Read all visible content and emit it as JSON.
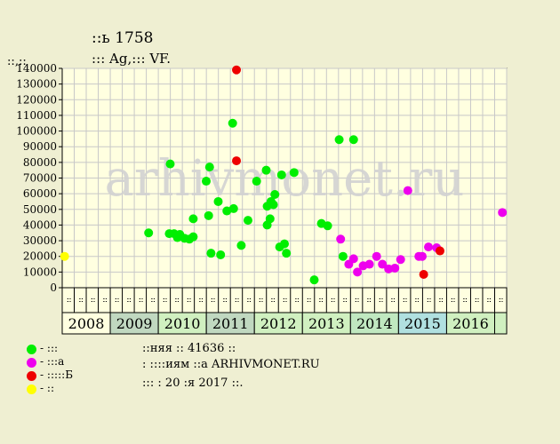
{
  "header": {
    "title": "։։ь 1758",
    "subtitle": "։։։ Ag,։։։ VF.",
    "unit_label": "։։,։։"
  },
  "colors": {
    "green": "#00ee00",
    "magenta": "#ee00ee",
    "red": "#ee0000",
    "yellow": "#ffff00",
    "plot_bg": "#ffffe0",
    "grid": "#c8c8c8",
    "watermark": "#d2d2d2"
  },
  "watermark": "arhivmonet.ru",
  "legend": [
    {
      "label": "- ։։։",
      "color": "#00ee00"
    },
    {
      "label": "- ։։։а",
      "color": "#ee00ee"
    },
    {
      "label": "- ։։։։։Б",
      "color": "#ee0000"
    },
    {
      "label": "- ։։",
      "color": "#ffff00"
    }
  ],
  "info": [
    "։։няя ։։ 41636 ։։",
    "։ ։։։։иям ։։а ARHIVMONET.RU",
    "։։։ ։ 20 ։я 2017 ։։."
  ],
  "chart_data": {
    "type": "scatter",
    "title": "",
    "ylabel": "։։,։։",
    "ylim": [
      0,
      140000
    ],
    "y_ticks": [
      0,
      10000,
      20000,
      30000,
      40000,
      50000,
      60000,
      70000,
      80000,
      90000,
      100000,
      110000,
      120000,
      130000,
      140000
    ],
    "grid": true,
    "years": [
      {
        "label": "2008",
        "color": "#ffffe0"
      },
      {
        "label": "2009",
        "color": "#c0d8c0"
      },
      {
        "label": "2010",
        "color": "#d0f0c0"
      },
      {
        "label": "2011",
        "color": "#c0d8c0"
      },
      {
        "label": "2012",
        "color": "#d0f0c0"
      },
      {
        "label": "2013",
        "color": "#d0f0c0"
      },
      {
        "label": "2014",
        "color": "#c0e8c0"
      },
      {
        "label": "2015",
        "color": "#b0e0e0"
      },
      {
        "label": "2016",
        "color": "#d0f0c0"
      },
      {
        "label": "",
        "color": "#d0f0c0"
      }
    ],
    "quarters": [
      "։։",
      "։։",
      "։։",
      "։։",
      "։։",
      "։։",
      "։։",
      "։։",
      "։։",
      "։։",
      "։։",
      "։։",
      "։։",
      "։։",
      "։։",
      "։։",
      "։։",
      "։։",
      "։։",
      "։։",
      "։։",
      "։։",
      "։։",
      "։։",
      "։։",
      "։։",
      "։։",
      "։։",
      "։։",
      "։։",
      "։։",
      "։։",
      "։։",
      "։։",
      "։։",
      "։։",
      "։։"
    ],
    "series": [
      {
        "group": "green",
        "points": [
          {
            "x": 2009.55,
            "y": 35000
          },
          {
            "x": 2010.0,
            "y": 79000
          },
          {
            "x": 2009.98,
            "y": 34500
          },
          {
            "x": 2010.08,
            "y": 34500
          },
          {
            "x": 2010.15,
            "y": 32000
          },
          {
            "x": 2010.2,
            "y": 34000
          },
          {
            "x": 2010.3,
            "y": 31500
          },
          {
            "x": 2010.4,
            "y": 31000
          },
          {
            "x": 2010.48,
            "y": 32500
          },
          {
            "x": 2010.48,
            "y": 44000
          },
          {
            "x": 2010.75,
            "y": 68000
          },
          {
            "x": 2010.8,
            "y": 46000
          },
          {
            "x": 2010.82,
            "y": 77000
          },
          {
            "x": 2010.85,
            "y": 22000
          },
          {
            "x": 2011.0,
            "y": 55000
          },
          {
            "x": 2011.05,
            "y": 21000
          },
          {
            "x": 2011.18,
            "y": 49000
          },
          {
            "x": 2011.3,
            "y": 105000
          },
          {
            "x": 2011.32,
            "y": 50500
          },
          {
            "x": 2011.48,
            "y": 27000
          },
          {
            "x": 2011.62,
            "y": 43000
          },
          {
            "x": 2011.8,
            "y": 68000
          },
          {
            "x": 2012.0,
            "y": 75000
          },
          {
            "x": 2012.02,
            "y": 52000
          },
          {
            "x": 2012.02,
            "y": 40000
          },
          {
            "x": 2012.08,
            "y": 44000
          },
          {
            "x": 2012.1,
            "y": 55000
          },
          {
            "x": 2012.15,
            "y": 53000
          },
          {
            "x": 2012.18,
            "y": 59500
          },
          {
            "x": 2012.28,
            "y": 26000
          },
          {
            "x": 2012.32,
            "y": 72000
          },
          {
            "x": 2012.38,
            "y": 28000
          },
          {
            "x": 2012.42,
            "y": 22000
          },
          {
            "x": 2012.58,
            "y": 73500
          },
          {
            "x": 2013.0,
            "y": 5000
          },
          {
            "x": 2013.15,
            "y": 41000
          },
          {
            "x": 2013.28,
            "y": 39500
          },
          {
            "x": 2013.52,
            "y": 94500
          },
          {
            "x": 2013.6,
            "y": 20000
          },
          {
            "x": 2013.82,
            "y": 94500
          }
        ]
      },
      {
        "group": "magenta",
        "points": [
          {
            "x": 2013.55,
            "y": 31000
          },
          {
            "x": 2013.72,
            "y": 15000
          },
          {
            "x": 2013.82,
            "y": 18500
          },
          {
            "x": 2013.9,
            "y": 10000
          },
          {
            "x": 2014.02,
            "y": 14000
          },
          {
            "x": 2014.15,
            "y": 15000
          },
          {
            "x": 2014.3,
            "y": 20000
          },
          {
            "x": 2014.42,
            "y": 15000
          },
          {
            "x": 2014.55,
            "y": 12000
          },
          {
            "x": 2014.68,
            "y": 12500
          },
          {
            "x": 2014.8,
            "y": 18000
          },
          {
            "x": 2014.95,
            "y": 62000
          },
          {
            "x": 2015.18,
            "y": 20000
          },
          {
            "x": 2015.25,
            "y": 20000
          },
          {
            "x": 2015.38,
            "y": 26000
          },
          {
            "x": 2015.55,
            "y": 25500
          },
          {
            "x": 2016.92,
            "y": 48000
          }
        ]
      },
      {
        "group": "red",
        "points": [
          {
            "x": 2011.38,
            "y": 139000
          },
          {
            "x": 2011.38,
            "y": 81000
          },
          {
            "x": 2015.28,
            "y": 8500
          },
          {
            "x": 2015.62,
            "y": 23500
          }
        ]
      },
      {
        "group": "yellow",
        "points": [
          {
            "x": 2007.8,
            "y": 20000
          }
        ]
      }
    ]
  }
}
